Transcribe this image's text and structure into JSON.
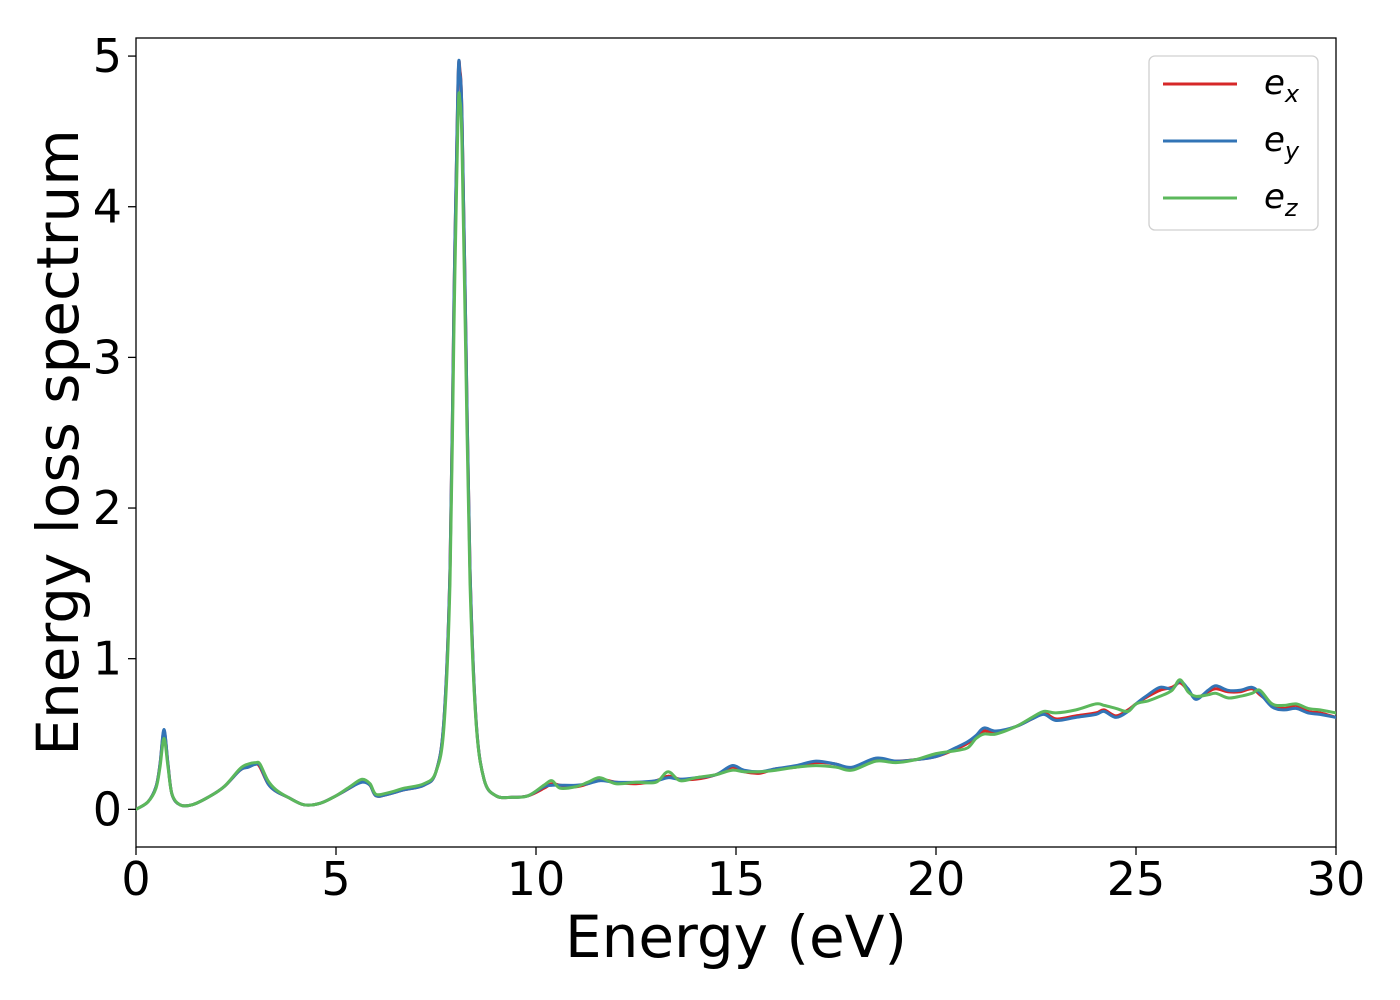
{
  "chart_data": {
    "type": "line",
    "xlabel": "Energy (eV)",
    "ylabel": "Energy loss spectrum",
    "xlim": [
      0,
      30
    ],
    "ylim": [
      -0.25,
      5.12
    ],
    "xticks": [
      0,
      5,
      10,
      15,
      20,
      25,
      30
    ],
    "xtick_labels": [
      "0",
      "5",
      "10",
      "15",
      "20",
      "25",
      "30"
    ],
    "yticks": [
      0,
      1,
      2,
      3,
      4,
      5
    ],
    "ytick_labels": [
      "0",
      "1",
      "2",
      "3",
      "4",
      "5"
    ],
    "grid": false,
    "legend_position": "top-right",
    "x": [
      0,
      0.3,
      0.5,
      0.6,
      0.7,
      0.8,
      0.9,
      1.1,
      1.4,
      1.8,
      2.2,
      2.6,
      2.8,
      3.0,
      3.1,
      3.3,
      3.5,
      3.8,
      4.2,
      4.6,
      5.0,
      5.4,
      5.65,
      5.85,
      6.0,
      6.3,
      6.7,
      7.2,
      7.5,
      7.7,
      7.85,
      7.95,
      8.05,
      8.1,
      8.15,
      8.25,
      8.35,
      8.5,
      8.7,
      9.0,
      9.4,
      9.8,
      10.2,
      10.4,
      10.6,
      11.0,
      11.3,
      11.6,
      12.0,
      12.5,
      13.0,
      13.3,
      13.6,
      14.0,
      14.5,
      14.9,
      15.2,
      15.6,
      16.0,
      16.5,
      17.0,
      17.5,
      17.9,
      18.5,
      19.0,
      19.5,
      20.0,
      20.5,
      20.8,
      21.0,
      21.2,
      21.5,
      22.0,
      22.4,
      22.7,
      23.0,
      23.5,
      24.0,
      24.2,
      24.5,
      24.8,
      25.0,
      25.3,
      25.6,
      25.9,
      26.1,
      26.3,
      26.5,
      26.8,
      27.0,
      27.3,
      27.6,
      27.9,
      28.1,
      28.4,
      28.7,
      29.0,
      29.3,
      29.6,
      30.0
    ],
    "series": [
      {
        "name": "e_x",
        "legend_base": "e",
        "legend_sub": "x",
        "color": "#d62728",
        "values": [
          0.0,
          0.05,
          0.15,
          0.3,
          0.52,
          0.3,
          0.1,
          0.03,
          0.03,
          0.08,
          0.15,
          0.26,
          0.28,
          0.3,
          0.28,
          0.17,
          0.12,
          0.08,
          0.03,
          0.04,
          0.09,
          0.15,
          0.19,
          0.16,
          0.09,
          0.1,
          0.13,
          0.16,
          0.25,
          0.6,
          1.6,
          3.4,
          4.82,
          4.9,
          4.6,
          3.1,
          1.6,
          0.6,
          0.2,
          0.09,
          0.08,
          0.09,
          0.14,
          0.17,
          0.16,
          0.15,
          0.17,
          0.2,
          0.18,
          0.17,
          0.19,
          0.22,
          0.2,
          0.2,
          0.23,
          0.28,
          0.25,
          0.24,
          0.27,
          0.28,
          0.31,
          0.3,
          0.27,
          0.33,
          0.32,
          0.33,
          0.35,
          0.4,
          0.44,
          0.48,
          0.52,
          0.51,
          0.55,
          0.6,
          0.64,
          0.6,
          0.62,
          0.64,
          0.66,
          0.62,
          0.66,
          0.7,
          0.75,
          0.79,
          0.81,
          0.84,
          0.79,
          0.74,
          0.78,
          0.8,
          0.78,
          0.78,
          0.8,
          0.76,
          0.7,
          0.67,
          0.69,
          0.65,
          0.64,
          0.61
        ]
      },
      {
        "name": "e_y",
        "legend_base": "e",
        "legend_sub": "y",
        "color": "#3274b6",
        "values": [
          0.0,
          0.05,
          0.15,
          0.3,
          0.53,
          0.3,
          0.1,
          0.03,
          0.03,
          0.08,
          0.15,
          0.26,
          0.28,
          0.3,
          0.29,
          0.17,
          0.12,
          0.08,
          0.03,
          0.04,
          0.09,
          0.15,
          0.18,
          0.16,
          0.09,
          0.1,
          0.13,
          0.16,
          0.25,
          0.6,
          1.6,
          3.4,
          4.84,
          4.88,
          4.6,
          3.1,
          1.6,
          0.6,
          0.2,
          0.09,
          0.08,
          0.09,
          0.15,
          0.16,
          0.16,
          0.16,
          0.17,
          0.19,
          0.18,
          0.18,
          0.19,
          0.21,
          0.2,
          0.21,
          0.23,
          0.29,
          0.26,
          0.25,
          0.27,
          0.29,
          0.32,
          0.3,
          0.28,
          0.34,
          0.32,
          0.33,
          0.35,
          0.41,
          0.45,
          0.49,
          0.54,
          0.52,
          0.55,
          0.6,
          0.63,
          0.59,
          0.61,
          0.63,
          0.65,
          0.61,
          0.65,
          0.7,
          0.76,
          0.81,
          0.8,
          0.85,
          0.8,
          0.73,
          0.79,
          0.82,
          0.79,
          0.79,
          0.81,
          0.77,
          0.68,
          0.66,
          0.67,
          0.64,
          0.63,
          0.61
        ]
      },
      {
        "name": "e_z",
        "legend_base": "e",
        "legend_sub": "z",
        "color": "#5cb85c",
        "values": [
          0.0,
          0.05,
          0.14,
          0.28,
          0.47,
          0.28,
          0.1,
          0.03,
          0.03,
          0.08,
          0.15,
          0.27,
          0.3,
          0.31,
          0.3,
          0.19,
          0.13,
          0.08,
          0.03,
          0.04,
          0.09,
          0.16,
          0.2,
          0.17,
          0.1,
          0.11,
          0.14,
          0.17,
          0.25,
          0.55,
          1.5,
          3.2,
          4.6,
          4.7,
          4.4,
          2.9,
          1.5,
          0.58,
          0.2,
          0.09,
          0.08,
          0.09,
          0.16,
          0.19,
          0.14,
          0.15,
          0.18,
          0.21,
          0.17,
          0.18,
          0.18,
          0.25,
          0.19,
          0.21,
          0.23,
          0.26,
          0.25,
          0.25,
          0.26,
          0.28,
          0.29,
          0.28,
          0.26,
          0.32,
          0.31,
          0.33,
          0.37,
          0.39,
          0.41,
          0.47,
          0.5,
          0.5,
          0.55,
          0.61,
          0.65,
          0.64,
          0.66,
          0.7,
          0.69,
          0.67,
          0.65,
          0.7,
          0.72,
          0.75,
          0.79,
          0.86,
          0.78,
          0.75,
          0.76,
          0.77,
          0.74,
          0.75,
          0.77,
          0.79,
          0.7,
          0.69,
          0.7,
          0.67,
          0.66,
          0.64
        ]
      }
    ]
  }
}
